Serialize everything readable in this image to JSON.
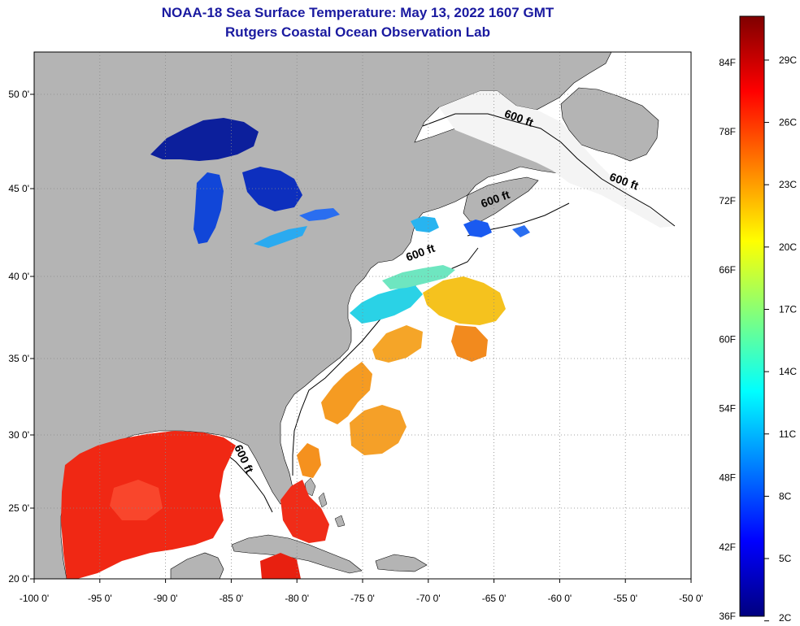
{
  "title": {
    "line1": "NOAA-18 Sea Surface Temperature:  May 13, 2022 1607 GMT",
    "line2": "Rutgers Coastal Ocean Observation Lab"
  },
  "colors": {
    "land": "#b4b4b4",
    "ocean_no_data": "#ffffff",
    "title": "#1a1aa0",
    "gridline": "#888888"
  },
  "map": {
    "lon_ticks": [
      {
        "value": -100,
        "label": "-100 0'"
      },
      {
        "value": -95,
        "label": "-95 0'"
      },
      {
        "value": -90,
        "label": "-90 0'"
      },
      {
        "value": -85,
        "label": "-85 0'"
      },
      {
        "value": -80,
        "label": "-80 0'"
      },
      {
        "value": -75,
        "label": "-75 0'"
      },
      {
        "value": -70,
        "label": "-70 0'"
      },
      {
        "value": -65,
        "label": "-65 0'"
      },
      {
        "value": -60,
        "label": "-60 0'"
      },
      {
        "value": -55,
        "label": "-55 0'"
      },
      {
        "value": -50,
        "label": "-50 0'"
      }
    ],
    "lat_ticks": [
      {
        "value": 20,
        "label": "20 0'"
      },
      {
        "value": 25,
        "label": "25 0'"
      },
      {
        "value": 30,
        "label": "30 0'"
      },
      {
        "value": 35,
        "label": "35 0'"
      },
      {
        "value": 40,
        "label": "40 0'"
      },
      {
        "value": 45,
        "label": "45 0'"
      },
      {
        "value": 50,
        "label": "50 0'"
      }
    ],
    "contour_labels": [
      {
        "text": "600 ft",
        "lon": -63.2,
        "lat": 48.2
      },
      {
        "text": "600 ft",
        "lon": -55.2,
        "lat": 44.3
      },
      {
        "text": "600 ft",
        "lon": -64.8,
        "lat": 43.2
      },
      {
        "text": "600 ft",
        "lon": -70.5,
        "lat": 39.9
      },
      {
        "text": "600 ft",
        "lon": -84.3,
        "lat": 27.3
      }
    ]
  },
  "colorbar": {
    "fahrenheit_labels": [
      {
        "value": 36,
        "label": "36F"
      },
      {
        "value": 42,
        "label": "42F"
      },
      {
        "value": 48,
        "label": "48F"
      },
      {
        "value": 54,
        "label": "54F"
      },
      {
        "value": 60,
        "label": "60F"
      },
      {
        "value": 66,
        "label": "66F"
      },
      {
        "value": 72,
        "label": "72F"
      },
      {
        "value": 78,
        "label": "78F"
      },
      {
        "value": 84,
        "label": "84F"
      }
    ],
    "celsius_labels": [
      {
        "value": 2,
        "label": "2C"
      },
      {
        "value": 5,
        "label": "5C"
      },
      {
        "value": 8,
        "label": "8C"
      },
      {
        "value": 11,
        "label": "11C"
      },
      {
        "value": 14,
        "label": "14C"
      },
      {
        "value": 17,
        "label": "17C"
      },
      {
        "value": 20,
        "label": "20C"
      },
      {
        "value": 23,
        "label": "23C"
      },
      {
        "value": 26,
        "label": "26C"
      },
      {
        "value": 29,
        "label": "29C"
      }
    ],
    "range_f": [
      36,
      88
    ],
    "stops": [
      "#00007f",
      "#0000ff",
      "#007fff",
      "#00ffff",
      "#7fff7f",
      "#ffff00",
      "#ff7f00",
      "#ff0000",
      "#7f0000"
    ]
  }
}
